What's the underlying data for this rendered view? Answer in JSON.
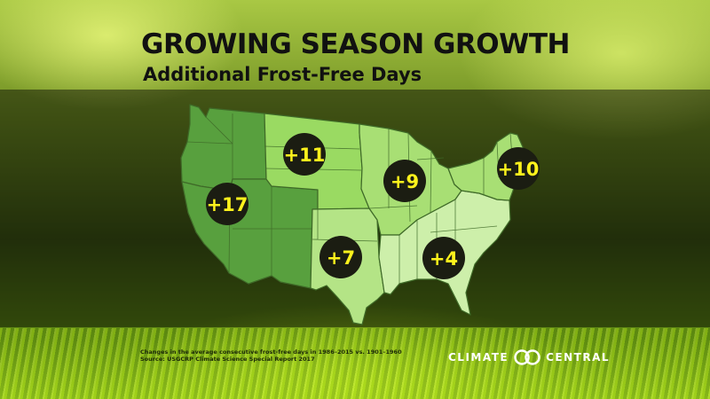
{
  "title": "GROWING SEASON GROWTH",
  "subtitle": "Additional Frost-Free Days",
  "regions": [
    {
      "name": "Northwest",
      "color": "#58a03e"
    },
    {
      "name": "Southwest",
      "color": "#58a03e"
    },
    {
      "name": "Great Plains North",
      "color": "#9ada62"
    },
    {
      "name": "Great Plains South",
      "color": "#b4e486"
    },
    {
      "name": "Midwest",
      "color": "#a8df74"
    },
    {
      "name": "Southeast",
      "color": "#cdefaa"
    },
    {
      "name": "Northeast",
      "color": "#a8df74"
    }
  ],
  "badges": [
    {
      "label": "+17",
      "region": "Southwest"
    },
    {
      "label": "+11",
      "region": "Great Plains North"
    },
    {
      "label": "+9",
      "region": "Midwest"
    },
    {
      "label": "+10",
      "region": "Northeast"
    },
    {
      "label": "+7",
      "region": "Great Plains South"
    },
    {
      "label": "+4",
      "region": "Southeast"
    }
  ],
  "footnote": {
    "line1": "Changes in the average consecutive frost-free days in 1986–2015 vs. 1901–1960",
    "line2": "Source: USGCRP Climate Science Special Report 2017"
  },
  "logo": {
    "left_word": "CLIMATE",
    "right_word": "CENTRAL",
    "mark_icon": "climate-central-rings-icon"
  },
  "colors": {
    "badge_fill": "#1b1d12",
    "badge_text": "#fdf21c",
    "state_lines": "#4a7a2e"
  }
}
